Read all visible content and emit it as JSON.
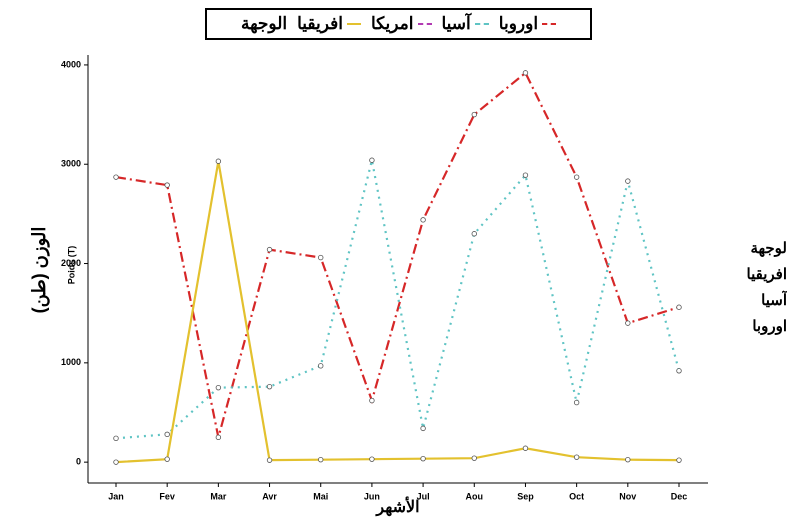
{
  "chart_data": {
    "type": "line",
    "legend_title": "الوجهة",
    "xlabel": "الأشهر",
    "ylabel": "الوزن (طن)",
    "ylabel_small": "Poids (T)",
    "categories": [
      "Jan",
      "Fev",
      "Mar",
      "Avr",
      "Mai",
      "Jun",
      "Jul",
      "Aou",
      "Sep",
      "Oct",
      "Nov",
      "Dec"
    ],
    "ylim": [
      -210,
      4100
    ],
    "yticks": [
      0,
      1000,
      2000,
      3000,
      4000
    ],
    "legend": "top",
    "side_legend": [
      "لوجهة",
      "افريقيا",
      "آسيا",
      "اوروبا"
    ],
    "series": [
      {
        "name": "اوروبا",
        "color": "#d62728",
        "dash": "10 4 2 4",
        "values": [
          2870,
          2790,
          250,
          2140,
          2060,
          620,
          2440,
          3500,
          3920,
          2870,
          1400,
          1560
        ]
      },
      {
        "name": "آسيا",
        "color": "#5fc4c4",
        "dash": "2 5",
        "values": [
          240,
          280,
          750,
          760,
          970,
          3040,
          340,
          2300,
          2890,
          600,
          2830,
          920
        ]
      },
      {
        "name": "امريكا",
        "color": "#b23ab2",
        "dash": "8 4",
        "values": [
          null,
          null,
          null,
          null,
          null,
          null,
          null,
          null,
          null,
          null,
          null,
          null
        ]
      },
      {
        "name": "افريقيا",
        "color": "#e3c12e",
        "dash": "",
        "values": [
          0,
          30,
          3030,
          20,
          25,
          30,
          35,
          40,
          140,
          50,
          25,
          20
        ]
      }
    ]
  }
}
